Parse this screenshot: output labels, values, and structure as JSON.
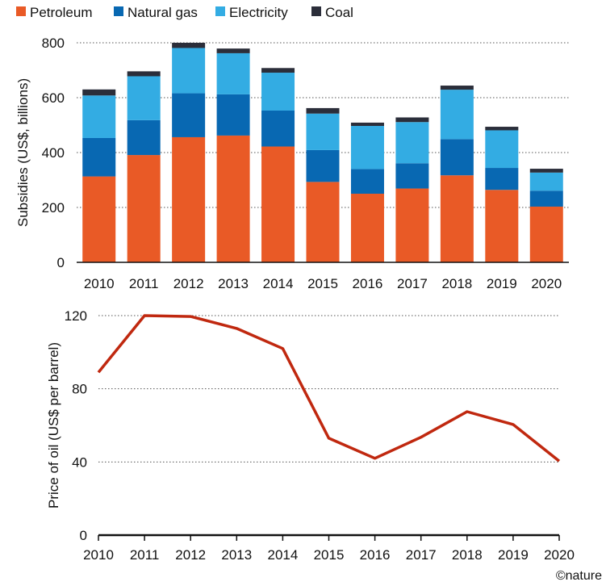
{
  "credit": "©nature",
  "colors": {
    "petroleum": "#E95A26",
    "natural_gas": "#0868B2",
    "electricity": "#33ACE3",
    "coal": "#2B2E3A",
    "oil_line": "#C0280F",
    "grid": "#555555"
  },
  "chart_data": [
    {
      "type": "bar",
      "stacked": true,
      "categories": [
        "2010",
        "2011",
        "2012",
        "2013",
        "2014",
        "2015",
        "2016",
        "2017",
        "2018",
        "2019",
        "2020"
      ],
      "series": [
        {
          "name": "Petroleum",
          "values": [
            313,
            391,
            456,
            462,
            422,
            293,
            250,
            269,
            317,
            264,
            203
          ]
        },
        {
          "name": "Natural gas",
          "values": [
            140,
            127,
            160,
            150,
            131,
            116,
            90,
            92,
            132,
            80,
            58
          ]
        },
        {
          "name": "Electricity",
          "values": [
            155,
            160,
            165,
            150,
            138,
            133,
            157,
            150,
            180,
            137,
            66
          ]
        },
        {
          "name": "Coal",
          "values": [
            22,
            18,
            19,
            17,
            17,
            20,
            12,
            17,
            15,
            13,
            14
          ]
        }
      ],
      "ylabel": "Subsidies (US$, billions)",
      "ylim": [
        0,
        800
      ],
      "yticks": [
        0,
        200,
        400,
        600,
        800
      ],
      "grid": true,
      "legend_placement": "top-left"
    },
    {
      "type": "line",
      "x": [
        "2010",
        "2011",
        "2012",
        "2013",
        "2014",
        "2015",
        "2016",
        "2017",
        "2018",
        "2019",
        "2020"
      ],
      "series": [
        {
          "values": [
            89,
            120,
            119.5,
            113,
            102,
            53,
            42,
            53.5,
            67.5,
            60.5,
            40.5
          ]
        }
      ],
      "ylabel": "Price of oil (US$ per barrel)",
      "ylim": [
        0,
        120
      ],
      "yticks": [
        0,
        40,
        80,
        120
      ],
      "grid": true
    }
  ]
}
